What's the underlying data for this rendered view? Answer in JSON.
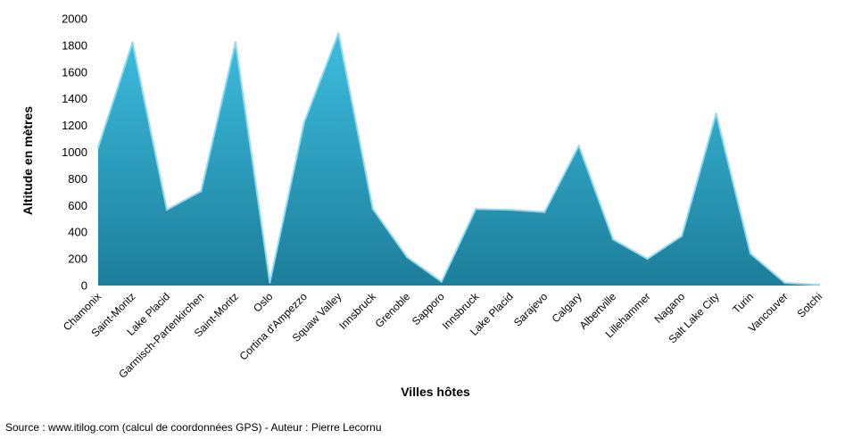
{
  "chart_data": {
    "type": "area",
    "title": "",
    "xlabel": "Villes hôtes",
    "ylabel": "Altitude en mètres",
    "ylim": [
      0,
      2000
    ],
    "yticks": [
      0,
      200,
      400,
      600,
      800,
      1000,
      1200,
      1400,
      1600,
      1800,
      2000
    ],
    "grid": false,
    "legend": "none",
    "categories": [
      "Chamonix",
      "Saint-Moritz",
      "Lake Placid",
      "Garmisch-Partenkirchen",
      "Saint-Moritz",
      "Oslo",
      "Cortina d'Ampezzo",
      "Squaw Valley",
      "Innsbruck",
      "Grenoble",
      "Sapporo",
      "Innsbruck",
      "Lake Placid",
      "Sarajevo",
      "Calgary",
      "Albertville",
      "Lillehammer",
      "Nagano",
      "Salt Lake City",
      "Turin",
      "Vancouver",
      "Sotchi"
    ],
    "values": [
      1035,
      1822,
      568,
      708,
      1822,
      23,
      1224,
      1890,
      574,
      212,
      29,
      574,
      568,
      550,
      1048,
      345,
      200,
      371,
      1288,
      239,
      20,
      5
    ],
    "colors": {
      "fill_top": "#3ebde0",
      "fill_bottom": "#1c7e9a",
      "ridge": "#8adcf2"
    }
  },
  "source": "Source : www.itilog.com (calcul de coordonnées GPS) - Auteur : Pierre Lecornu"
}
